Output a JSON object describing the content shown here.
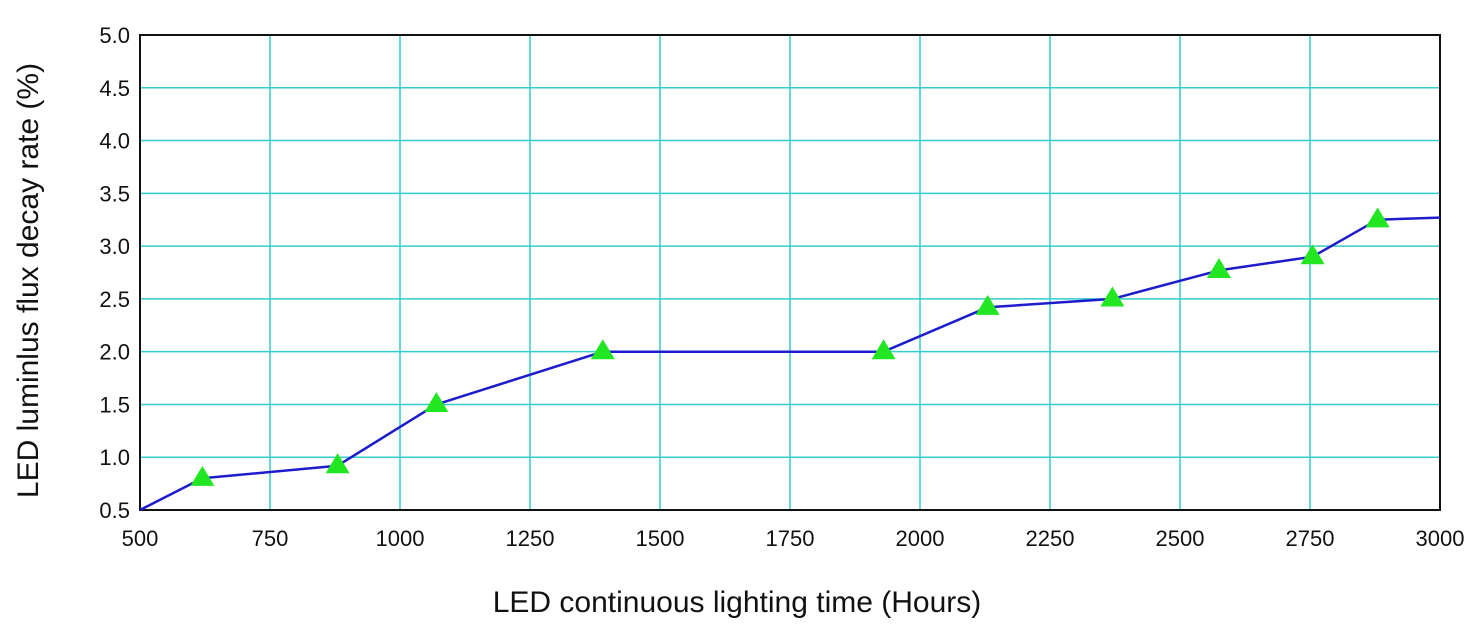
{
  "chart_data": {
    "type": "line",
    "title": "",
    "xlabel": "LED continuous lighting time (Hours)",
    "ylabel": "LED luminlus flux decay rate (%)",
    "xlim": [
      500,
      3000
    ],
    "ylim": [
      0.5,
      5.0
    ],
    "xticks": [
      500,
      750,
      1000,
      1250,
      1500,
      1750,
      2000,
      2250,
      2500,
      2750,
      3000
    ],
    "yticks": [
      "0.5",
      "1.0",
      "1.5",
      "2.0",
      "2.5",
      "3.0",
      "3.5",
      "4.0",
      "4.5",
      "5.0"
    ],
    "grid": true,
    "grid_color": "#33cccc",
    "series": [
      {
        "line_color": "#1c1ccc",
        "marker": "triangle",
        "marker_color": "#22e622",
        "x": [
          500,
          620,
          880,
          1070,
          1390,
          1930,
          2130,
          2370,
          2575,
          2755,
          2880,
          3000
        ],
        "y": [
          0.5,
          0.8,
          0.92,
          1.5,
          2.0,
          2.0,
          2.42,
          2.5,
          2.77,
          2.9,
          3.25,
          3.27
        ],
        "marker_points": [
          1,
          2,
          3,
          4,
          5,
          6,
          7,
          8,
          9,
          10
        ]
      }
    ]
  }
}
